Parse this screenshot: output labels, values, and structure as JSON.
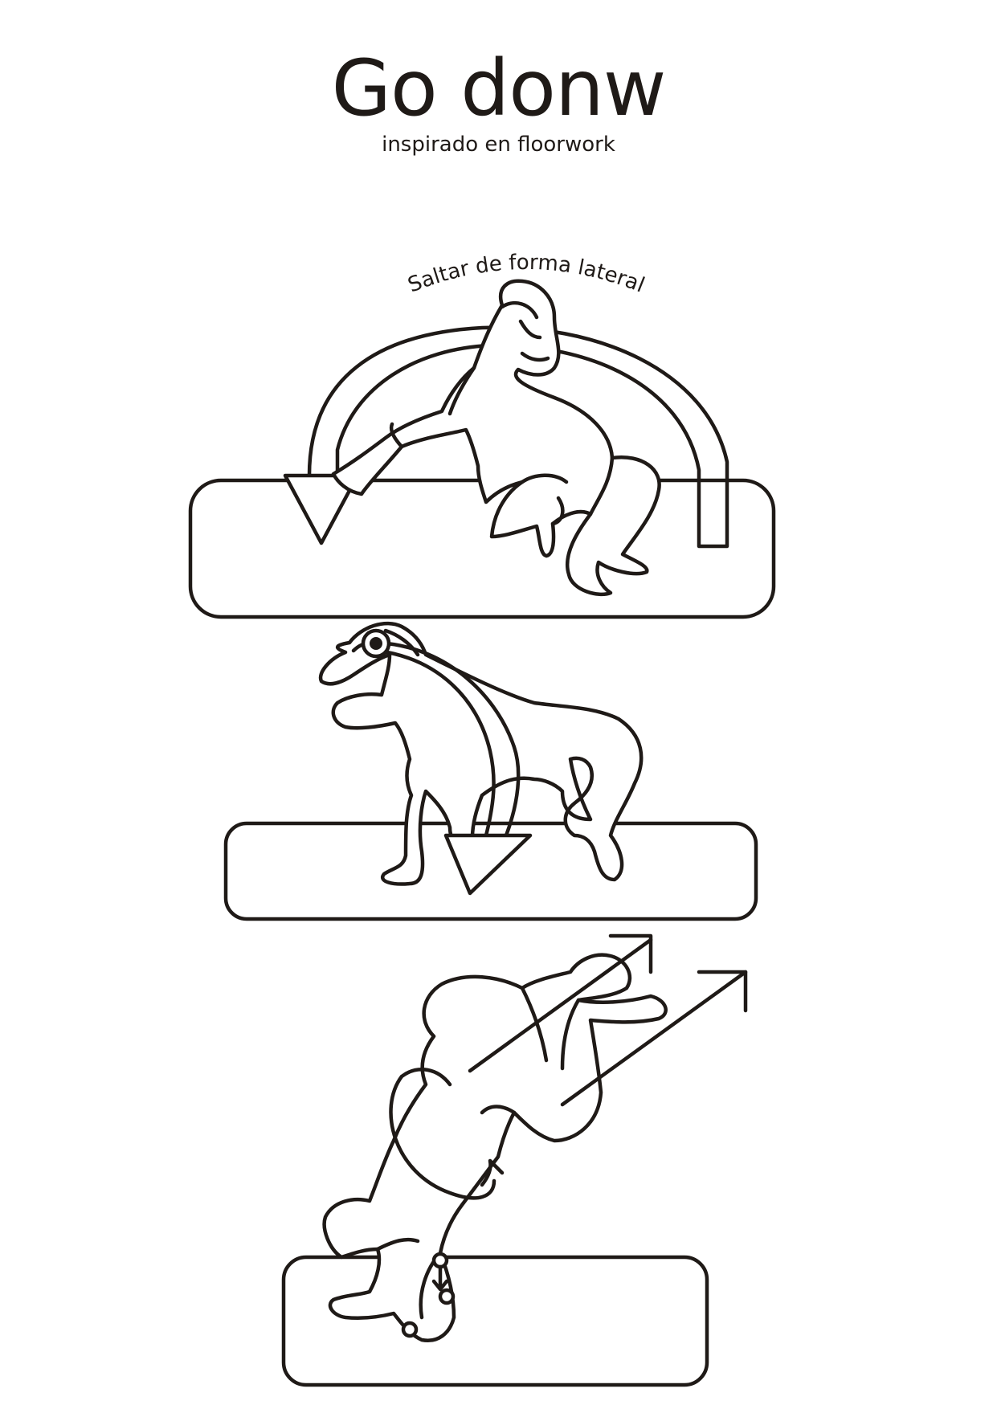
{
  "header": {
    "title": "Go donw",
    "subtitle": "inspirado en floorwork"
  },
  "step1": {
    "label": "Saltar de forma lateral"
  },
  "colors": {
    "ink": "#1f1a17",
    "paper": "#ffffff"
  }
}
